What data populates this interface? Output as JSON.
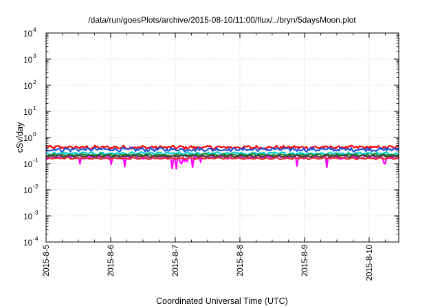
{
  "chart_data": {
    "type": "line",
    "title": "/data/run/goesPlots/archive/2015-08-10/11:00/flux/../bryn/5daysMoon.plot",
    "xlabel": "Coordinated Universal Time (UTC)",
    "ylabel": "cSv/day",
    "y_scale": "log",
    "ylim": [
      0.0001,
      10000
    ],
    "xlim": [
      "2015-08-05T00:00",
      "2015-08-10T11:00"
    ],
    "grid": true,
    "y_ticks": [
      {
        "base": "10",
        "exp": "-4",
        "value": 0.0001
      },
      {
        "base": "10",
        "exp": "-3",
        "value": 0.001
      },
      {
        "base": "10",
        "exp": "-2",
        "value": 0.01
      },
      {
        "base": "10",
        "exp": "-1",
        "value": 0.1
      },
      {
        "base": "10",
        "exp": "0",
        "value": 1
      },
      {
        "base": "10",
        "exp": "1",
        "value": 10
      },
      {
        "base": "10",
        "exp": "2",
        "value": 100
      },
      {
        "base": "10",
        "exp": "3",
        "value": 1000
      },
      {
        "base": "10",
        "exp": "4",
        "value": 10000
      }
    ],
    "x_ticks": [
      {
        "label": "2015-8-5",
        "value": "2015-08-05"
      },
      {
        "label": "2015-8-6",
        "value": "2015-08-06"
      },
      {
        "label": "2015-8-7",
        "value": "2015-08-07"
      },
      {
        "label": "2015-8-8",
        "value": "2015-08-08"
      },
      {
        "label": "2015-8-9",
        "value": "2015-08-09"
      },
      {
        "label": "2015-8-10",
        "value": "2015-08-10"
      }
    ],
    "series": [
      {
        "color": "#ff0000",
        "level": 0.42,
        "noise": 0.14
      },
      {
        "color": "#2255dd",
        "level": 0.35,
        "noise": 0.15
      },
      {
        "color": "#00cccc",
        "level": 0.245,
        "noise": 0.1
      },
      {
        "color": "#228822",
        "level": 0.215,
        "noise": 0.08
      },
      {
        "color": "#ff00ff",
        "level": 0.175,
        "noise": 0.12
      },
      {
        "color": "#444444",
        "level": 0.195,
        "noise": 0.06
      },
      {
        "color": "#dd3333",
        "level": 0.16,
        "noise": 0.06
      }
    ]
  }
}
